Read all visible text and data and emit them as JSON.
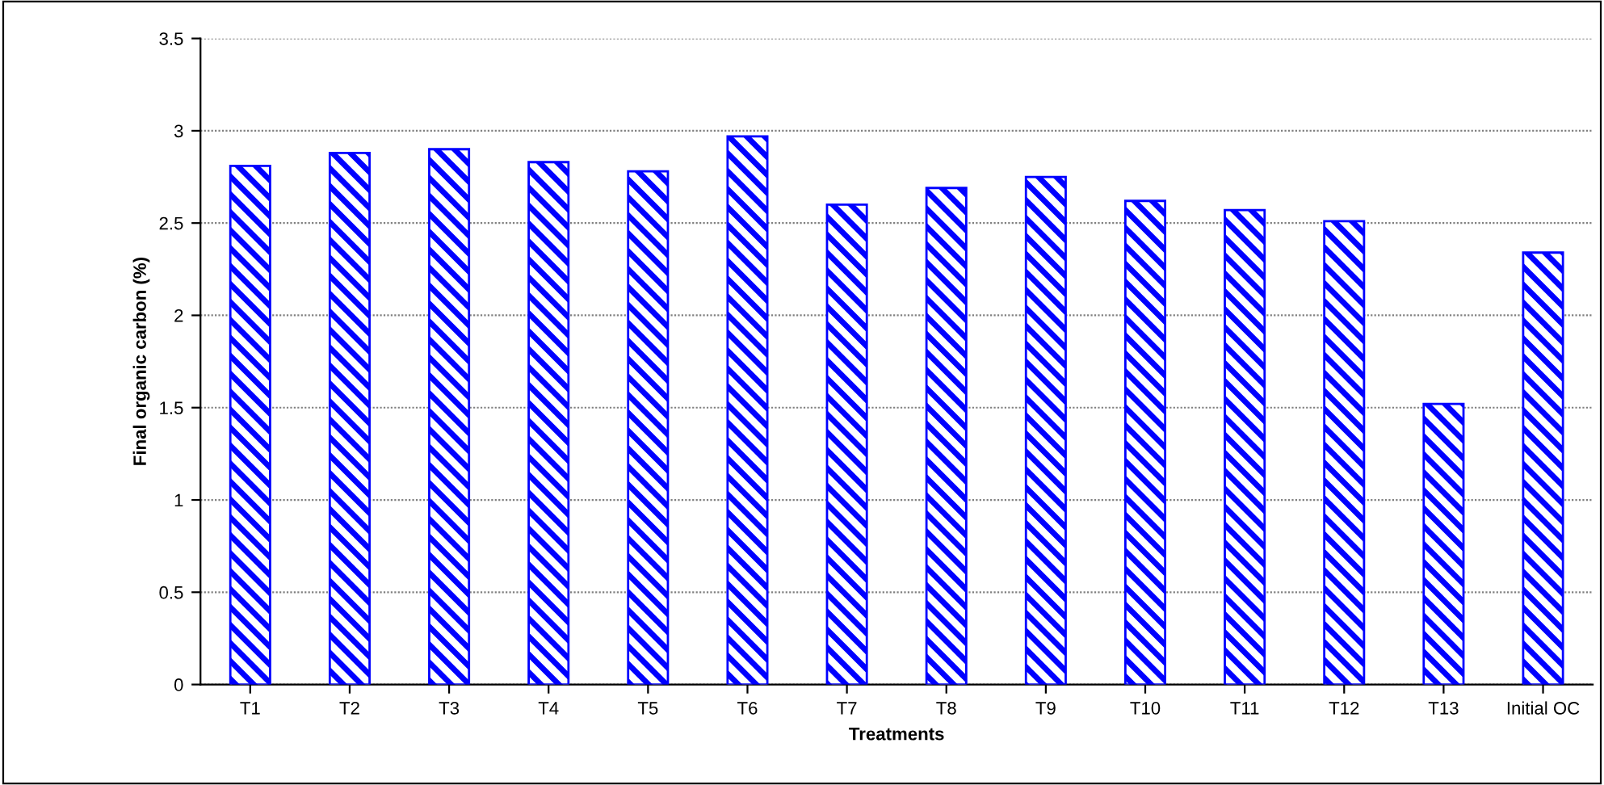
{
  "chart_data": {
    "type": "bar",
    "xlabel": "Treatments",
    "ylabel": "Final organic carbon (%)",
    "categories": [
      "T1",
      "T2",
      "T3",
      "T4",
      "T5",
      "T6",
      "T7",
      "T8",
      "T9",
      "T10",
      "T11",
      "T12",
      "T13",
      "Initial OC"
    ],
    "values": [
      2.81,
      2.88,
      2.9,
      2.83,
      2.78,
      2.97,
      2.6,
      2.69,
      2.75,
      2.62,
      2.57,
      2.51,
      1.52,
      2.34
    ],
    "color": "#0000ff",
    "ylim": [
      0,
      3.5
    ],
    "yticks": [
      0,
      0.5,
      1,
      1.5,
      2,
      2.5,
      3,
      3.5
    ],
    "grid": "y",
    "legend": false
  }
}
